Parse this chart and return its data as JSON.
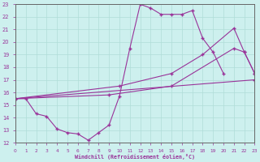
{
  "background_color": "#cdf0ee",
  "line_color": "#993399",
  "grid_color": "#b0ddd8",
  "xlim": [
    0,
    23
  ],
  "ylim": [
    12,
    23
  ],
  "xticks": [
    0,
    1,
    2,
    3,
    4,
    5,
    6,
    7,
    8,
    9,
    10,
    11,
    12,
    13,
    14,
    15,
    16,
    17,
    18,
    19,
    20,
    21,
    22,
    23
  ],
  "yticks": [
    12,
    13,
    14,
    15,
    16,
    17,
    18,
    19,
    20,
    21,
    22,
    23
  ],
  "xlabel": "Windchill (Refroidissement éolien,°C)",
  "series": [
    {
      "name": "main_zigzag",
      "x": [
        0,
        1,
        2,
        3,
        4,
        5,
        6,
        7,
        8,
        9,
        10,
        11,
        12,
        13,
        14,
        15,
        16,
        17,
        18,
        19,
        20
      ],
      "y": [
        15.5,
        15.5,
        14.3,
        14.1,
        13.1,
        12.8,
        12.7,
        12.2,
        12.8,
        13.4,
        15.7,
        19.5,
        23.0,
        22.7,
        22.2,
        22.2,
        22.2,
        22.5,
        20.3,
        19.2,
        17.5
      ]
    },
    {
      "name": "upper_straight",
      "x": [
        0,
        10,
        15,
        18,
        21,
        22,
        23
      ],
      "y": [
        15.5,
        16.5,
        17.5,
        19.0,
        21.1,
        19.2,
        17.5
      ]
    },
    {
      "name": "lower_straight",
      "x": [
        0,
        23
      ],
      "y": [
        15.5,
        17.0
      ]
    },
    {
      "name": "mid_straight",
      "x": [
        0,
        9,
        15,
        21,
        22,
        23
      ],
      "y": [
        15.5,
        15.8,
        16.5,
        19.5,
        19.2,
        17.5
      ]
    }
  ]
}
